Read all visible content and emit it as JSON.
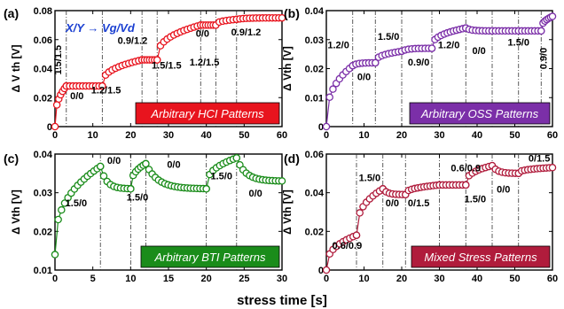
{
  "x_axis_label": "stress time [s]",
  "chart_data": [
    {
      "tag": "(a)",
      "type": "scatter",
      "color": "#e8141e",
      "label_box_color": "#e8141e",
      "pattern_label": "Arbitrary HCI Patterns",
      "xlim": [
        0,
        60
      ],
      "ylim": [
        0,
        0.08
      ],
      "xticks": [
        "0",
        "10",
        "20",
        "30",
        "40",
        "50",
        "60"
      ],
      "yticks": [
        "0",
        "0.02",
        "0.04",
        "0.06",
        "0.08"
      ],
      "ylabel": "Δ V th [V]",
      "note": "X/Y → Vg/Vd",
      "dividers": [
        3,
        12.5,
        23,
        27,
        38.5,
        42.5,
        48
      ],
      "segments": [
        {
          "type": "stress",
          "t0": 0,
          "t1": 3,
          "v0": 0.0,
          "v1": 0.028
        },
        {
          "type": "recover",
          "t0": 3,
          "t1": 12.5,
          "v0": 0.028,
          "v1": 0.028
        },
        {
          "type": "stress",
          "t0": 12.5,
          "t1": 23,
          "v0": 0.028,
          "v1": 0.046
        },
        {
          "type": "recover",
          "t0": 23,
          "t1": 27,
          "v0": 0.046,
          "v1": 0.046
        },
        {
          "type": "stress",
          "t0": 27,
          "t1": 38.5,
          "v0": 0.046,
          "v1": 0.07
        },
        {
          "type": "recover",
          "t0": 38.5,
          "t1": 42.5,
          "v0": 0.07,
          "v1": 0.07
        },
        {
          "type": "stress",
          "t0": 42.5,
          "t1": 48,
          "v0": 0.07,
          "v1": 0.074
        },
        {
          "type": "recover",
          "t0": 48,
          "t1": 60,
          "v0": 0.074,
          "v1": 0.075
        }
      ],
      "annotations": [
        {
          "text": "1.5/1.5",
          "x": 1.6,
          "y": 0.046,
          "rotate": true
        },
        {
          "text": "0/0",
          "x": 5.8,
          "y": 0.019
        },
        {
          "text": "1.2/1.5",
          "x": 13.5,
          "y": 0.023
        },
        {
          "text": "0.9/1.2",
          "x": 20.5,
          "y": 0.057
        },
        {
          "text": "1.5/1.5",
          "x": 29.5,
          "y": 0.04
        },
        {
          "text": "0/0",
          "x": 39,
          "y": 0.062
        },
        {
          "text": "1.2/1.5",
          "x": 39.5,
          "y": 0.042
        },
        {
          "text": "0.9/1.2",
          "x": 50.5,
          "y": 0.063
        }
      ]
    },
    {
      "tag": "(b)",
      "type": "scatter",
      "color": "#7b2fa8",
      "label_box_color": "#7b2fa8",
      "pattern_label": "Arbitrary OSS Patterns",
      "xlim": [
        0,
        60
      ],
      "ylim": [
        0,
        0.04
      ],
      "xticks": [
        "0",
        "10",
        "20",
        "30",
        "40",
        "50",
        "60"
      ],
      "yticks": [
        "0",
        "0.01",
        "0.02",
        "0.03",
        "0.04"
      ],
      "ylabel": "Δ Vth [V]",
      "dividers": [
        7,
        13,
        20,
        28,
        37,
        44,
        51,
        57
      ],
      "segments": [
        {
          "type": "stress",
          "t0": 0,
          "t1": 7,
          "v0": 0.0,
          "v1": 0.021
        },
        {
          "type": "recover",
          "t0": 7,
          "t1": 13,
          "v0": 0.021,
          "v1": 0.022
        },
        {
          "type": "stress",
          "t0": 13,
          "t1": 20,
          "v0": 0.022,
          "v1": 0.026
        },
        {
          "type": "recover",
          "t0": 20,
          "t1": 28,
          "v0": 0.026,
          "v1": 0.027
        },
        {
          "type": "stress",
          "t0": 28,
          "t1": 37,
          "v0": 0.027,
          "v1": 0.034
        },
        {
          "type": "recover",
          "t0": 37,
          "t1": 44,
          "v0": 0.034,
          "v1": 0.033
        },
        {
          "type": "stress",
          "t0": 44,
          "t1": 51,
          "v0": 0.033,
          "v1": 0.033
        },
        {
          "type": "recover",
          "t0": 51,
          "t1": 57,
          "v0": 0.033,
          "v1": 0.033
        },
        {
          "type": "stress",
          "t0": 57,
          "t1": 60,
          "v0": 0.033,
          "v1": 0.038
        }
      ],
      "annotations": [
        {
          "text": "1.2/0",
          "x": 3.2,
          "y": 0.027
        },
        {
          "text": "0/0",
          "x": 10,
          "y": 0.016
        },
        {
          "text": "1.5/0",
          "x": 16.5,
          "y": 0.03
        },
        {
          "text": "0.9/0",
          "x": 24.5,
          "y": 0.021
        },
        {
          "text": "1.2/0",
          "x": 32.5,
          "y": 0.027
        },
        {
          "text": "0/0",
          "x": 40.5,
          "y": 0.025
        },
        {
          "text": "1.5/0",
          "x": 51,
          "y": 0.028
        },
        {
          "text": "0.9/0",
          "x": 58.5,
          "y": 0.0235,
          "rotate": true
        }
      ]
    },
    {
      "tag": "(c)",
      "type": "scatter",
      "color": "#1a8c1a",
      "label_box_color": "#1a8c1a",
      "pattern_label": "Arbitrary BTI Patterns",
      "xlim": [
        0,
        30
      ],
      "ylim": [
        0.01,
        0.04
      ],
      "xticks": [
        "0",
        "5",
        "10",
        "15",
        "20",
        "25",
        "30"
      ],
      "yticks": [
        "0.01",
        "0.02",
        "0.03",
        "0.04"
      ],
      "ylabel": "Δ Vth [V]",
      "dividers": [
        6,
        10,
        12,
        20,
        24
      ],
      "segments": [
        {
          "type": "stress",
          "t0": 0,
          "t1": 6,
          "v0": 0.014,
          "v1": 0.0368
        },
        {
          "type": "recover",
          "t0": 6,
          "t1": 10,
          "v0": 0.0368,
          "v1": 0.031
        },
        {
          "type": "stress",
          "t0": 10,
          "t1": 12,
          "v0": 0.031,
          "v1": 0.0375
        },
        {
          "type": "recover",
          "t0": 12,
          "t1": 20,
          "v0": 0.0375,
          "v1": 0.031
        },
        {
          "type": "stress",
          "t0": 20,
          "t1": 24,
          "v0": 0.031,
          "v1": 0.039
        },
        {
          "type": "recover",
          "t0": 24,
          "t1": 30,
          "v0": 0.039,
          "v1": 0.033
        }
      ],
      "annotations": [
        {
          "text": "1.5/0",
          "x": 2.8,
          "y": 0.0265
        },
        {
          "text": "0/0",
          "x": 7.8,
          "y": 0.0375
        },
        {
          "text": "1.5/0",
          "x": 10.9,
          "y": 0.028
        },
        {
          "text": "0/0",
          "x": 15.7,
          "y": 0.0365
        },
        {
          "text": "1.5/0",
          "x": 22,
          "y": 0.0335
        },
        {
          "text": "0/0",
          "x": 26.5,
          "y": 0.029
        }
      ]
    },
    {
      "tag": "(d)",
      "type": "scatter",
      "color": "#b01c3c",
      "label_box_color": "#b01c3c",
      "pattern_label": "Mixed Stress Patterns",
      "xlim": [
        0,
        60
      ],
      "ylim": [
        0,
        0.06
      ],
      "xticks": [
        "0",
        "10",
        "20",
        "30",
        "40",
        "50",
        "60"
      ],
      "yticks": [
        "0",
        "0.02",
        "0.04",
        "0.06"
      ],
      "ylabel": "Δ Vth [V]",
      "dividers": [
        8,
        15,
        21,
        30,
        37,
        44,
        51
      ],
      "segments": [
        {
          "type": "stress",
          "t0": 0,
          "t1": 8,
          "v0": 0.0,
          "v1": 0.018
        },
        {
          "type": "stress",
          "t0": 8,
          "t1": 15,
          "v0": 0.018,
          "v1": 0.042
        },
        {
          "type": "recover",
          "t0": 15,
          "t1": 21,
          "v0": 0.042,
          "v1": 0.039
        },
        {
          "type": "stress",
          "t0": 21,
          "t1": 30,
          "v0": 0.039,
          "v1": 0.044
        },
        {
          "type": "recover",
          "t0": 30,
          "t1": 37,
          "v0": 0.044,
          "v1": 0.044
        },
        {
          "type": "stress",
          "t0": 37,
          "t1": 44,
          "v0": 0.044,
          "v1": 0.054
        },
        {
          "type": "recover",
          "t0": 44,
          "t1": 51,
          "v0": 0.054,
          "v1": 0.05
        },
        {
          "type": "stress",
          "t0": 51,
          "t1": 60,
          "v0": 0.05,
          "v1": 0.053
        }
      ],
      "annotations": [
        {
          "text": "0.6/0.9",
          "x": 5.5,
          "y": 0.011
        },
        {
          "text": "1.5/0",
          "x": 11.5,
          "y": 0.046
        },
        {
          "text": "0/0",
          "x": 17.5,
          "y": 0.033
        },
        {
          "text": "0/1.5",
          "x": 24.5,
          "y": 0.033
        },
        {
          "text": "0.6/0.9",
          "x": 37,
          "y": 0.051
        },
        {
          "text": "1.5/0",
          "x": 39.5,
          "y": 0.035
        },
        {
          "text": "0/0",
          "x": 47,
          "y": 0.04
        },
        {
          "text": "0/1.5",
          "x": 56.5,
          "y": 0.056
        }
      ]
    }
  ]
}
